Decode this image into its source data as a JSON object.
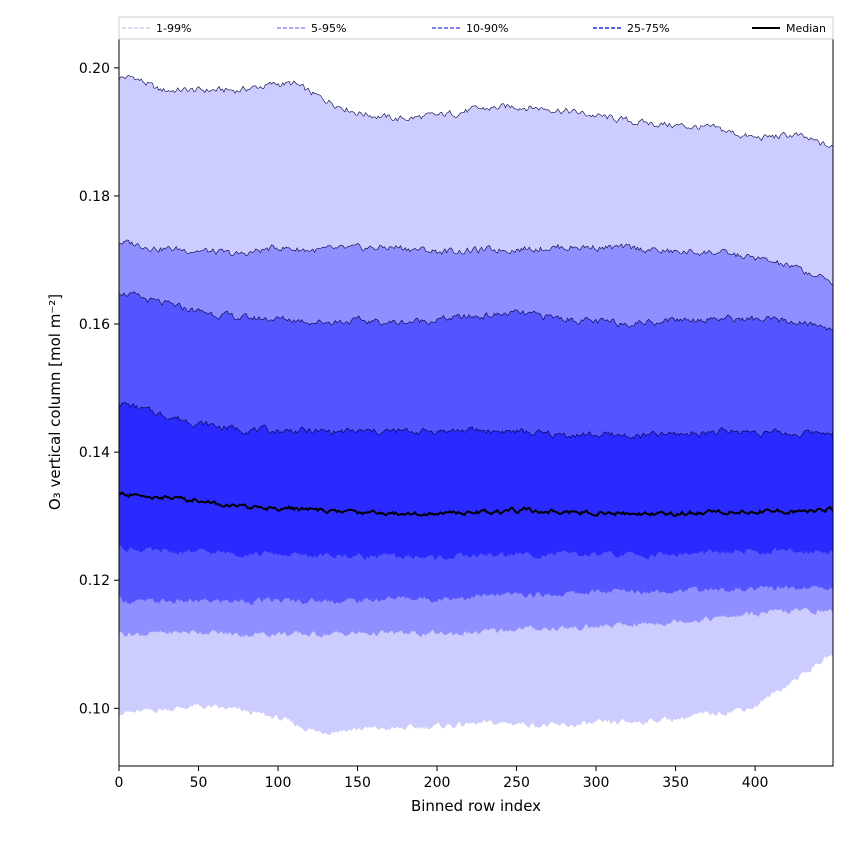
{
  "chart_data": {
    "type": "area",
    "title": "",
    "xlabel": "Binned row index",
    "ylabel": "O₃ vertical column [mol m⁻²]",
    "xlim": [
      0,
      449
    ],
    "ylim": [
      0.091,
      0.2045
    ],
    "xticks": [
      0,
      50,
      100,
      150,
      200,
      250,
      300,
      350,
      400
    ],
    "yticks": [
      0.1,
      0.12,
      0.14,
      0.16,
      0.18,
      0.2
    ],
    "ytick_labels": [
      "0.10",
      "0.12",
      "0.14",
      "0.16",
      "0.18",
      "0.20"
    ],
    "grid": false,
    "legend_position": "top",
    "colors": {
      "band_1_99": "#ccccff",
      "band_5_95": "#8f8fff",
      "band_10_90": "#5555ff",
      "band_25_75": "#2a2aff",
      "median": "#000000"
    },
    "legend": [
      {
        "label": "1-99%",
        "color": "#ccccff",
        "style": "dashed"
      },
      {
        "label": "5-95%",
        "color": "#8f8fff",
        "style": "dashed"
      },
      {
        "label": "10-90%",
        "color": "#5555ff",
        "style": "dashed"
      },
      {
        "label": "25-75%",
        "color": "#2a2aff",
        "style": "dashed"
      },
      {
        "label": "Median",
        "color": "#000000",
        "style": "solid"
      }
    ],
    "x": [
      0,
      10,
      25,
      50,
      75,
      100,
      110,
      125,
      150,
      175,
      200,
      225,
      250,
      275,
      300,
      325,
      350,
      375,
      400,
      425,
      449
    ],
    "bands": [
      {
        "name": "1-99%",
        "upper": [
          0.1985,
          0.1985,
          0.1965,
          0.1965,
          0.1965,
          0.1975,
          0.1975,
          0.1955,
          0.193,
          0.192,
          0.1925,
          0.1935,
          0.194,
          0.1935,
          0.1925,
          0.1915,
          0.191,
          0.1905,
          0.189,
          0.1895,
          0.1875
        ],
        "lower": [
          0.0995,
          0.0993,
          0.0998,
          0.1003,
          0.0997,
          0.0985,
          0.0975,
          0.0963,
          0.0968,
          0.0968,
          0.0972,
          0.0976,
          0.0977,
          0.0972,
          0.0976,
          0.0979,
          0.0984,
          0.0992,
          0.1003,
          0.1045,
          0.1085
        ]
      },
      {
        "name": "5-95%",
        "upper": [
          0.1728,
          0.1725,
          0.1718,
          0.1715,
          0.1708,
          0.172,
          0.1717,
          0.1715,
          0.1718,
          0.172,
          0.1713,
          0.1715,
          0.1717,
          0.172,
          0.172,
          0.1718,
          0.1712,
          0.1712,
          0.1703,
          0.1688,
          0.1665
        ],
        "lower": [
          0.1118,
          0.1116,
          0.1117,
          0.112,
          0.1115,
          0.1117,
          0.1115,
          0.1116,
          0.1117,
          0.1117,
          0.1116,
          0.1118,
          0.1124,
          0.1125,
          0.1127,
          0.1131,
          0.1136,
          0.1141,
          0.1147,
          0.1152,
          0.1152
        ]
      },
      {
        "name": "10-90%",
        "upper": [
          0.1652,
          0.1643,
          0.1633,
          0.162,
          0.161,
          0.1608,
          0.1607,
          0.1603,
          0.1605,
          0.1602,
          0.1607,
          0.1612,
          0.1617,
          0.161,
          0.1603,
          0.1602,
          0.1607,
          0.1609,
          0.1607,
          0.1603,
          0.1593
        ],
        "lower": [
          0.117,
          0.1166,
          0.1167,
          0.1167,
          0.1168,
          0.1168,
          0.1168,
          0.1168,
          0.1168,
          0.1172,
          0.1171,
          0.1175,
          0.1177,
          0.1178,
          0.1182,
          0.1183,
          0.1185,
          0.1185,
          0.1186,
          0.1188,
          0.1188
        ]
      },
      {
        "name": "25-75%",
        "upper": [
          0.1478,
          0.147,
          0.146,
          0.1445,
          0.1436,
          0.1433,
          0.1434,
          0.1432,
          0.1432,
          0.1432,
          0.1433,
          0.1434,
          0.1432,
          0.1427,
          0.1427,
          0.1425,
          0.1428,
          0.1432,
          0.1432,
          0.1428,
          0.1433
        ],
        "lower": [
          0.1252,
          0.1249,
          0.1244,
          0.1244,
          0.1242,
          0.1241,
          0.1239,
          0.1238,
          0.1238,
          0.1237,
          0.1235,
          0.1239,
          0.124,
          0.1241,
          0.124,
          0.1239,
          0.124,
          0.1243,
          0.1244,
          0.1245,
          0.1246
        ]
      }
    ],
    "median": [
      0.1335,
      0.1332,
      0.133,
      0.1325,
      0.1315,
      0.1313,
      0.1312,
      0.1309,
      0.1306,
      0.1305,
      0.1304,
      0.1306,
      0.1309,
      0.1307,
      0.1306,
      0.1304,
      0.1304,
      0.1307,
      0.1308,
      0.1307,
      0.1311
    ]
  }
}
